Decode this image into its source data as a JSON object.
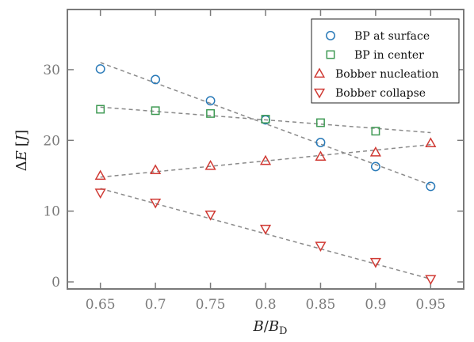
{
  "chart_data": {
    "type": "scatter",
    "xlabel": "B/B_D",
    "ylabel": "ΔE [J]",
    "xlim": [
      0.62,
      0.98
    ],
    "ylim": [
      -1,
      38.5
    ],
    "xticks": [
      0.65,
      0.7,
      0.75,
      0.8,
      0.85,
      0.9,
      0.95
    ],
    "xtick_labels": [
      "0.65",
      "0.7",
      "0.75",
      "0.8",
      "0.85",
      "0.9",
      "0.95"
    ],
    "yticks": [
      0,
      10,
      20,
      30
    ],
    "ytick_labels": [
      "0",
      "10",
      "20",
      "30"
    ],
    "grid": false,
    "legend_position": "top-right",
    "x": [
      0.65,
      0.7,
      0.75,
      0.8,
      0.85,
      0.9,
      0.95
    ],
    "series": [
      {
        "name": "BP at surface",
        "marker": "circle",
        "color": "#2a7ab8",
        "values": [
          30.1,
          28.6,
          25.6,
          22.9,
          19.7,
          16.3,
          13.5
        ],
        "fit": [
          31.0,
          13.7
        ]
      },
      {
        "name": "BP in center",
        "marker": "square",
        "color": "#3f9a54",
        "values": [
          24.4,
          24.2,
          23.8,
          23.0,
          22.5,
          21.3,
          null
        ],
        "fit": [
          24.7,
          21.1
        ]
      },
      {
        "name": "Bobber nucleation",
        "marker": "triangle-up",
        "color": "#d03a34",
        "values": [
          15.0,
          15.8,
          16.4,
          17.1,
          17.7,
          18.3,
          19.6
        ],
        "fit": [
          14.8,
          19.4
        ]
      },
      {
        "name": "Bobber collapse",
        "marker": "triangle-down",
        "color": "#d03a34",
        "values": [
          12.6,
          11.2,
          9.5,
          7.5,
          5.1,
          2.8,
          0.4
        ],
        "fit": [
          13.2,
          0.4
        ]
      }
    ]
  }
}
